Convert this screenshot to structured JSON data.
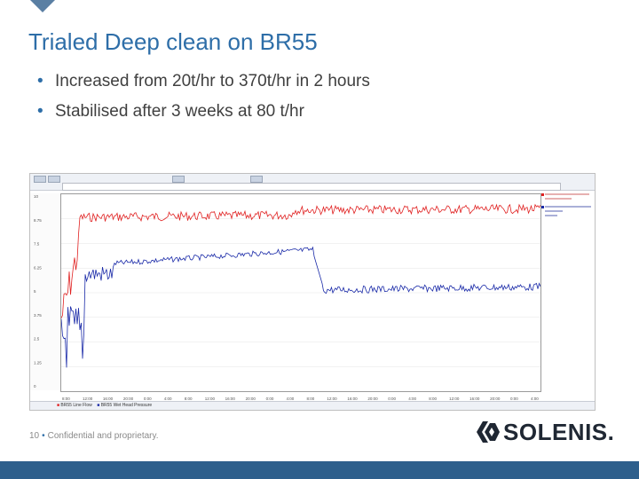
{
  "slide": {
    "title": "Trialed Deep clean on BR55",
    "bullets": [
      "Increased from 20t/hr to 370t/hr in 2 hours",
      "Stabilised after 3 weeks at 80 t/hr"
    ],
    "footer_page": "10",
    "footer_text": "Confidential and proprietary.",
    "logo_text": "SOLENIS.",
    "accent_color": "#2e6ea8",
    "bar_color": "#2e5f8c"
  },
  "trend_screenshot": {
    "series_colors": {
      "red": "#e02020",
      "blue": "#1a2aa8"
    },
    "legend_labels": [
      "BR55 Line Flow",
      "BR55 Wet Head Pressure"
    ],
    "y_ticks_left": [
      "10",
      "8.75",
      "7.5",
      "6.25",
      "5",
      "3.75",
      "2.5",
      "1.25",
      "0"
    ],
    "x_ticks": [
      "8:00",
      "12:00",
      "16:00",
      "20:00",
      "0:00",
      "4:00",
      "8:00",
      "12:00",
      "16:00",
      "20:00",
      "0:00",
      "4:00",
      "8:00",
      "12:00",
      "16:00",
      "20:00",
      "0:00",
      "4:00",
      "8:00",
      "12:00",
      "16:00",
      "20:00",
      "0:00",
      "4:00"
    ]
  }
}
